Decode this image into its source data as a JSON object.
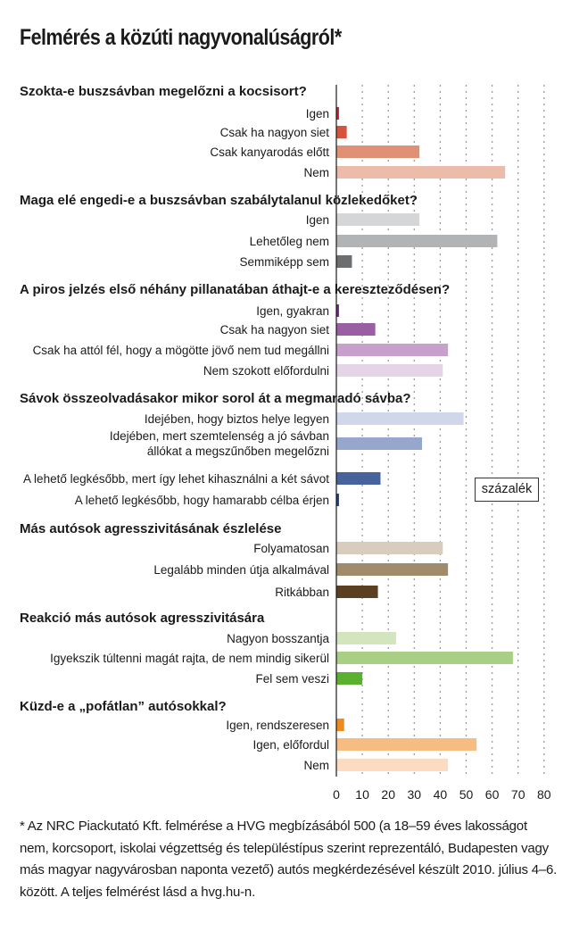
{
  "title": "Felmérés a közúti nagyvonalúságról*",
  "unit_label": "százalék",
  "footnote": "* Az NRC Piackutató Kft. felmérése a HVG megbízásából 500 (a 18–59 éves lakosságot nem, korcsoport, iskolai végzettség és településtípus szerint reprezentáló, Budapesten vagy más magyar nagyvárosban naponta vezető) autós megkérdezésével készült 2010. július 4–6. között. A teljes felmérést lásd a hvg.hu-n.",
  "chart_data": {
    "type": "bar",
    "orientation": "horizontal",
    "xlim": [
      0,
      80
    ],
    "xticks": [
      "0",
      "10",
      "20",
      "30",
      "40",
      "50",
      "60",
      "70",
      "80"
    ],
    "grid": "dotted vertical",
    "groups": [
      {
        "title": "Szokta-e buszsávban megelőzni a kocsisort?",
        "bars": [
          {
            "label": "Igen",
            "value": 1,
            "color": "#c8202a"
          },
          {
            "label": "Csak ha nagyon siet",
            "value": 4,
            "color": "#d4523e"
          },
          {
            "label": "Csak kanyarodás előtt",
            "value": 32,
            "color": "#e09075"
          },
          {
            "label": "Nem",
            "value": 65,
            "color": "#ecbba9"
          }
        ]
      },
      {
        "title": "Maga elé engedi-e a buszsávban szabálytalanul közlekedőket?",
        "bars": [
          {
            "label": "Igen",
            "value": 32,
            "color": "#d5d6d8"
          },
          {
            "label": "Lehetőleg nem",
            "value": 62,
            "color": "#b2b3b5"
          },
          {
            "label": "Semmiképp sem",
            "value": 6,
            "color": "#6d6e70"
          }
        ]
      },
      {
        "title": "A piros jelzés első néhány pillanatában áthajt-e a kereszteződésen?",
        "bars": [
          {
            "label": "Igen, gyakran",
            "value": 1,
            "color": "#6e2a7c"
          },
          {
            "label": "Csak ha nagyon siet",
            "value": 15,
            "color": "#9a5fa3"
          },
          {
            "label": "Csak ha attól fél, hogy a mögötte jövő nem tud megállni",
            "value": 43,
            "color": "#c8a0cc"
          },
          {
            "label": "Nem szokott előfordulni",
            "value": 41,
            "color": "#e5d3e7"
          }
        ]
      },
      {
        "title": "Sávok összeolvadásakor mikor sorol át a megmaradó sávba?",
        "bars": [
          {
            "label": "Idejében, hogy biztos helye legyen",
            "value": 49,
            "color": "#d1d7ea"
          },
          {
            "label": [
              "Idejében, mert szemtelenség a jó sávban",
              "állókat a megszűnőben megelőzni"
            ],
            "value": 33,
            "color": "#96a6cd"
          },
          {
            "label": "A lehető legkésőbb, mert így lehet kihasználni a két sávot",
            "value": 17,
            "color": "#46639c"
          },
          {
            "label": "A lehető legkésőbb, hogy hamarabb célba érjen",
            "value": 1,
            "color": "#1d3f7a"
          }
        ]
      },
      {
        "title": "Más autósok agresszivitásának észlelése",
        "bars": [
          {
            "label": "Folyamatosan",
            "value": 41,
            "color": "#d8cdbd"
          },
          {
            "label": "Legalább minden útja alkalmával",
            "value": 43,
            "color": "#a08b6a"
          },
          {
            "label": "Ritkábban",
            "value": 16,
            "color": "#5a4020"
          }
        ]
      },
      {
        "title": "Reakció más autósok agresszivitására",
        "bars": [
          {
            "label": "Nagyon bosszantja",
            "value": 23,
            "color": "#d3e5be"
          },
          {
            "label": "Igyekszik túltenni magát rajta, de nem mindig sikerül",
            "value": 68,
            "color": "#a9cf85"
          },
          {
            "label": "Fel sem veszi",
            "value": 10,
            "color": "#5bb030"
          }
        ]
      },
      {
        "title": "Küzd-e a „pofátlan” autósokkal?",
        "bars": [
          {
            "label": "Igen, rendszeresen",
            "value": 3,
            "color": "#ef8a1f"
          },
          {
            "label": "Igen, előfordul",
            "value": 54,
            "color": "#f6bc82"
          },
          {
            "label": "Nem",
            "value": 43,
            "color": "#fbdcc0"
          }
        ]
      }
    ]
  }
}
